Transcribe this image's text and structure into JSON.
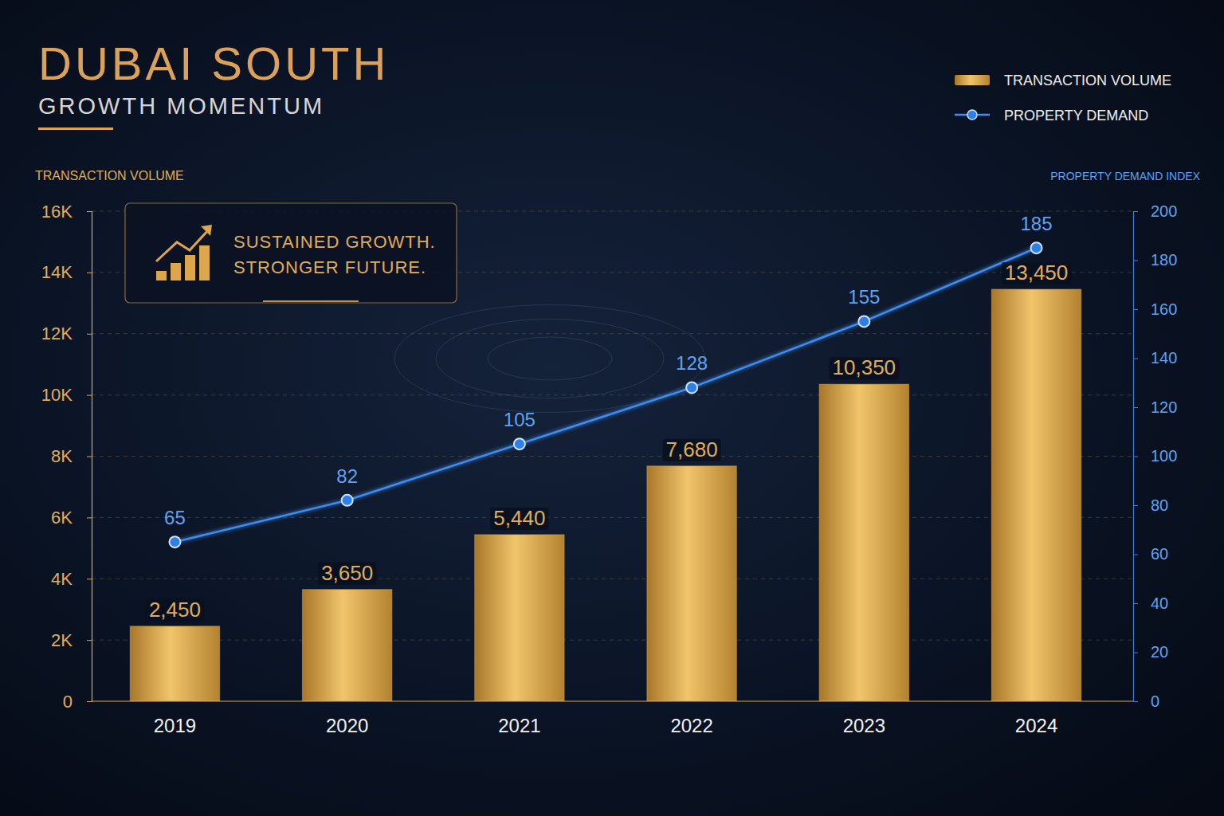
{
  "chart_data": {
    "type": "bar",
    "title": "DUBAI SOUTH",
    "subtitle": "GROWTH MOMENTUM",
    "annotations": [
      "SUSTAINED GROWTH.",
      "STRONGER FUTURE."
    ],
    "y_label": "TRANSACTION VOLUME",
    "y2_label": "PROPERTY DEMAND INDEX",
    "categories": [
      "2019",
      "2020",
      "2021",
      "2022",
      "2023",
      "2024"
    ],
    "series": [
      {
        "name": "TRANSACTION VOLUME",
        "type": "bar",
        "color": "#dba64c",
        "values": [
          2450,
          3650,
          5440,
          7680,
          10350,
          13450
        ],
        "value_labels": [
          "2,450",
          "3,650",
          "5,440",
          "7,680",
          "10,350",
          "13,450"
        ]
      },
      {
        "name": "PROPERTY DEMAND",
        "type": "line",
        "axis": "y2",
        "color": "#3f8ef2",
        "marker": "circle",
        "values": [
          65,
          82,
          105,
          128,
          155,
          185
        ]
      }
    ],
    "ylim": [
      0,
      16000
    ],
    "yticks": [
      0,
      {
        "value": 2000,
        "label": "2K"
      },
      {
        "value": 4000,
        "label": "4K"
      },
      {
        "value": 6000,
        "label": "6K"
      },
      {
        "value": 8000,
        "label": "8K"
      },
      {
        "value": 10000,
        "label": "10K"
      },
      {
        "value": 12000,
        "label": "12K"
      },
      {
        "value": 14000,
        "label": "14K"
      },
      {
        "value": 16000,
        "label": "16K"
      }
    ],
    "y2lim": [
      0,
      200
    ],
    "y2ticks": [
      0,
      20,
      40,
      60,
      80,
      100,
      120,
      140,
      160,
      180,
      200
    ],
    "grid": true,
    "data_labels": true,
    "legend": "top-right"
  }
}
